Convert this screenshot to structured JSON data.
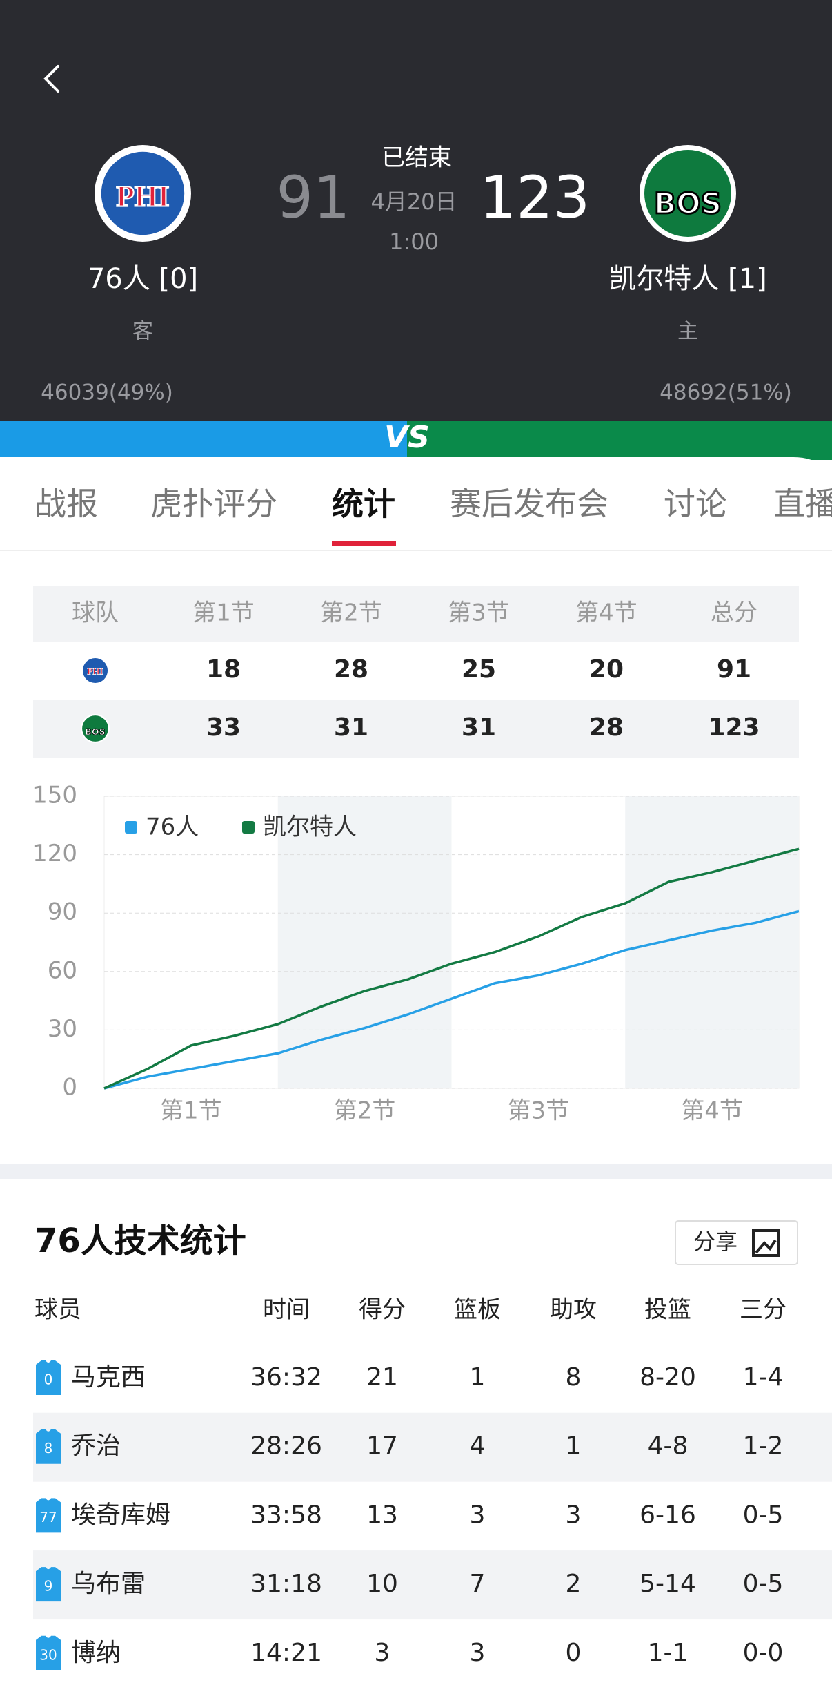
{
  "header": {
    "status": "已结束",
    "date": "4月20日",
    "time": "1:00",
    "away": {
      "logo": "PHI",
      "score": 91,
      "name": "76人 [0]",
      "role": "客",
      "support": "46039(49%)"
    },
    "home": {
      "logo": "BOS",
      "score": 123,
      "name": "凯尔特人 [1]",
      "role": "主",
      "support": "48692(51%)"
    },
    "vs": "VS"
  },
  "tabs": [
    "战报",
    "虎扑评分",
    "统计",
    "赛后发布会",
    "讨论",
    "直播"
  ],
  "quarter_table": {
    "header": [
      "球队",
      "第1节",
      "第2节",
      "第3节",
      "第4节",
      "总分"
    ],
    "rows": [
      [
        "PHI",
        18,
        28,
        25,
        20,
        91
      ],
      [
        "BOS",
        33,
        31,
        31,
        28,
        123
      ]
    ]
  },
  "chart_data": {
    "type": "line",
    "legend": "top-left",
    "grid": true,
    "x": [
      0,
      3,
      6,
      9,
      12,
      15,
      18,
      21,
      24,
      27,
      30,
      33,
      36,
      39,
      42,
      45,
      48
    ],
    "xlim": [
      0,
      48
    ],
    "xticks": [
      {
        "value": 6,
        "label": "第1节"
      },
      {
        "value": 18,
        "label": "第2节"
      },
      {
        "value": 30,
        "label": "第3节"
      },
      {
        "value": 42,
        "label": "第4节"
      }
    ],
    "ylim": [
      0,
      150
    ],
    "yticks": [
      0,
      30,
      60,
      90,
      120,
      150
    ],
    "series": [
      {
        "name": "76人",
        "color": "#27a0e6",
        "values": [
          0,
          6,
          10,
          14,
          18,
          25,
          31,
          38,
          46,
          54,
          58,
          64,
          71,
          76,
          81,
          85,
          91
        ]
      },
      {
        "name": "凯尔特人",
        "color": "#137a43",
        "values": [
          0,
          10,
          22,
          27,
          33,
          42,
          50,
          56,
          64,
          70,
          78,
          88,
          95,
          106,
          111,
          117,
          123
        ]
      }
    ]
  },
  "stats": {
    "title": "76人技术统计",
    "share": "分享",
    "columns": [
      "球员",
      "时间",
      "得分",
      "篮板",
      "助攻",
      "投篮",
      "三分"
    ],
    "rows": [
      {
        "number": "0",
        "name": "马克西",
        "cells": [
          "36:32",
          "21",
          "1",
          "8",
          "8-20",
          "1-4"
        ]
      },
      {
        "number": "8",
        "name": "乔治",
        "cells": [
          "28:26",
          "17",
          "4",
          "1",
          "4-8",
          "1-2"
        ]
      },
      {
        "number": "77",
        "name": "埃奇库姆",
        "cells": [
          "33:58",
          "13",
          "3",
          "3",
          "6-16",
          "0-5"
        ]
      },
      {
        "number": "9",
        "name": "乌布雷",
        "cells": [
          "31:18",
          "10",
          "7",
          "2",
          "5-14",
          "0-5"
        ]
      },
      {
        "number": "30",
        "name": "博纳",
        "cells": [
          "14:21",
          "3",
          "3",
          "0",
          "1-1",
          "0-0"
        ]
      }
    ]
  }
}
